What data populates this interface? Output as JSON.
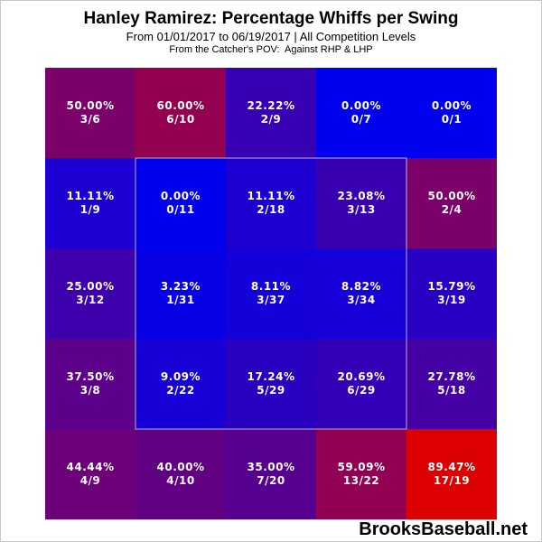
{
  "header": {
    "title": "Hanley Ramirez: Percentage Whiffs per Swing",
    "subtitle": "From 01/01/2017 to 06/19/2017 | All Competition Levels",
    "subtitle2": "From the Catcher's POV:  Against RHP & LHP"
  },
  "watermark": "BrooksBaseball.net",
  "chart_data": {
    "type": "heatmap",
    "title": "Hanley Ramirez: Percentage Whiffs per Swing",
    "rows": 5,
    "cols": 5,
    "strike_zone": "inner 3x3 cells outlined",
    "color_scale": {
      "low": "#0000ee",
      "high": "#dd0000"
    },
    "cells": [
      [
        {
          "pct": "50.00%",
          "frac": "3/6",
          "value": 50.0
        },
        {
          "pct": "60.00%",
          "frac": "6/10",
          "value": 60.0
        },
        {
          "pct": "22.22%",
          "frac": "2/9",
          "value": 22.22
        },
        {
          "pct": "0.00%",
          "frac": "0/7",
          "value": 0.0
        },
        {
          "pct": "0.00%",
          "frac": "0/1",
          "value": 0.0
        }
      ],
      [
        {
          "pct": "11.11%",
          "frac": "1/9",
          "value": 11.11
        },
        {
          "pct": "0.00%",
          "frac": "0/11",
          "value": 0.0
        },
        {
          "pct": "11.11%",
          "frac": "2/18",
          "value": 11.11
        },
        {
          "pct": "23.08%",
          "frac": "3/13",
          "value": 23.08
        },
        {
          "pct": "50.00%",
          "frac": "2/4",
          "value": 50.0
        }
      ],
      [
        {
          "pct": "25.00%",
          "frac": "3/12",
          "value": 25.0
        },
        {
          "pct": "3.23%",
          "frac": "1/31",
          "value": 3.23
        },
        {
          "pct": "8.11%",
          "frac": "3/37",
          "value": 8.11
        },
        {
          "pct": "8.82%",
          "frac": "3/34",
          "value": 8.82
        },
        {
          "pct": "15.79%",
          "frac": "3/19",
          "value": 15.79
        }
      ],
      [
        {
          "pct": "37.50%",
          "frac": "3/8",
          "value": 37.5
        },
        {
          "pct": "9.09%",
          "frac": "2/22",
          "value": 9.09
        },
        {
          "pct": "17.24%",
          "frac": "5/29",
          "value": 17.24
        },
        {
          "pct": "20.69%",
          "frac": "6/29",
          "value": 20.69
        },
        {
          "pct": "27.78%",
          "frac": "5/18",
          "value": 27.78
        }
      ],
      [
        {
          "pct": "44.44%",
          "frac": "4/9",
          "value": 44.44
        },
        {
          "pct": "40.00%",
          "frac": "4/10",
          "value": 40.0
        },
        {
          "pct": "35.00%",
          "frac": "7/20",
          "value": 35.0
        },
        {
          "pct": "59.09%",
          "frac": "13/22",
          "value": 59.09
        },
        {
          "pct": "89.47%",
          "frac": "17/19",
          "value": 89.47
        }
      ]
    ]
  }
}
